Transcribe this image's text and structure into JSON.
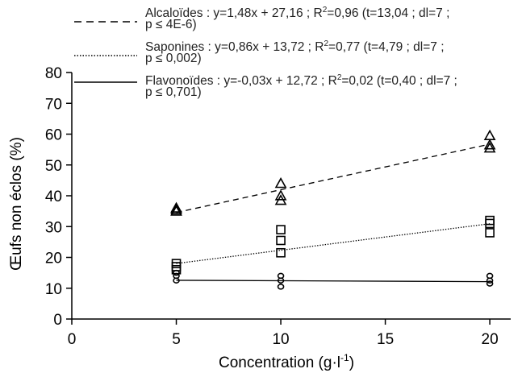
{
  "chart_data": {
    "type": "scatter",
    "xlabel": "Concentration (g·l",
    "xlabel_sup": "-1",
    "xlabel_suffix": ")",
    "ylabel": "Œufs non éclos (%)",
    "xlim": [
      0,
      21
    ],
    "ylim": [
      0,
      80
    ],
    "xticks": [
      0,
      5,
      10,
      15,
      20
    ],
    "yticks": [
      0,
      10,
      20,
      30,
      40,
      50,
      60,
      70,
      80
    ],
    "grid": false,
    "legend_position": "top",
    "series": [
      {
        "name": "Alcaloïdes",
        "marker": "triangle",
        "line_style": "dashed",
        "equation_a": "Alcaloïdes : y=1,48x + 27,16 ; R",
        "equation_b": "=0,96 (t=13,04 ; dl=7 ;",
        "equation_c": "p ≤ 4E-6)",
        "fit": {
          "slope": 1.48,
          "intercept": 27.16,
          "x_start": 5,
          "x_end": 20
        },
        "points": [
          {
            "x": 5,
            "y": 36
          },
          {
            "x": 5,
            "y": 35.5
          },
          {
            "x": 5,
            "y": 35
          },
          {
            "x": 10,
            "y": 44
          },
          {
            "x": 10,
            "y": 40
          },
          {
            "x": 10,
            "y": 38.5
          },
          {
            "x": 20,
            "y": 59.5
          },
          {
            "x": 20,
            "y": 56.5
          },
          {
            "x": 20,
            "y": 55.5
          }
        ]
      },
      {
        "name": "Saponines",
        "marker": "square",
        "line_style": "dotted",
        "equation_a": "Saponines : y=0,86x + 13,72 ; R",
        "equation_b": "=0,77 (t=4,79 ; dl=7 ;",
        "equation_c": "p ≤ 0,002)",
        "fit": {
          "slope": 0.86,
          "intercept": 13.72,
          "x_start": 5,
          "x_end": 20
        },
        "points": [
          {
            "x": 5,
            "y": 18
          },
          {
            "x": 5,
            "y": 17
          },
          {
            "x": 5,
            "y": 16
          },
          {
            "x": 10,
            "y": 29
          },
          {
            "x": 10,
            "y": 25.5
          },
          {
            "x": 10,
            "y": 21.5
          },
          {
            "x": 20,
            "y": 32
          },
          {
            "x": 20,
            "y": 31
          },
          {
            "x": 20,
            "y": 28
          }
        ]
      },
      {
        "name": "Flavonoïdes",
        "marker": "circle",
        "line_style": "solid",
        "equation_a": "Flavonoïdes : y=-0,03x + 12,72 ; R",
        "equation_b": "=0,02 (t=0,40 ; dl=7 ;",
        "equation_c": "p ≤ 0,701)",
        "fit": {
          "slope": -0.03,
          "intercept": 12.72,
          "x_start": 5,
          "x_end": 20
        },
        "points": [
          {
            "x": 5,
            "y": 15
          },
          {
            "x": 5,
            "y": 14
          },
          {
            "x": 5,
            "y": 12.5
          },
          {
            "x": 10,
            "y": 14
          },
          {
            "x": 10,
            "y": 12.5
          },
          {
            "x": 10,
            "y": 10.5
          },
          {
            "x": 20,
            "y": 14
          },
          {
            "x": 20,
            "y": 12.5
          },
          {
            "x": 20,
            "y": 11.5
          }
        ]
      }
    ]
  }
}
